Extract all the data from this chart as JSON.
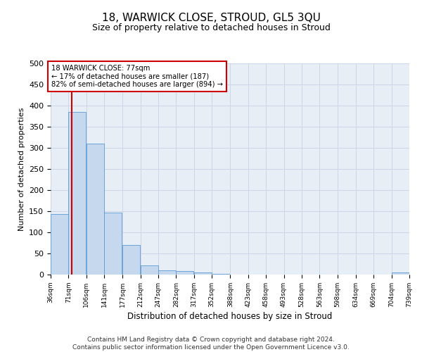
{
  "title": "18, WARWICK CLOSE, STROUD, GL5 3QU",
  "subtitle": "Size of property relative to detached houses in Stroud",
  "xlabel": "Distribution of detached houses by size in Stroud",
  "ylabel": "Number of detached properties",
  "bin_edges": [
    36,
    71,
    106,
    141,
    177,
    212,
    247,
    282,
    317,
    352,
    388,
    423,
    458,
    493,
    528,
    563,
    598,
    634,
    669,
    704,
    739
  ],
  "bar_heights": [
    143,
    385,
    310,
    146,
    70,
    22,
    10,
    8,
    5,
    2,
    0,
    0,
    0,
    0,
    0,
    0,
    0,
    0,
    0,
    5
  ],
  "bar_color": "#c5d8ed",
  "bar_edge_color": "#5b9bd5",
  "vline_x": 77,
  "vline_color": "#cc0000",
  "annotation_line1": "18 WARWICK CLOSE: 77sqm",
  "annotation_line2": "← 17% of detached houses are smaller (187)",
  "annotation_line3": "82% of semi-detached houses are larger (894) →",
  "annotation_box_color": "#ffffff",
  "annotation_box_edge_color": "#cc0000",
  "grid_color": "#cdd6e8",
  "background_color": "#e8eef5",
  "ylim": [
    0,
    500
  ],
  "yticks": [
    0,
    50,
    100,
    150,
    200,
    250,
    300,
    350,
    400,
    450,
    500
  ],
  "tick_labels": [
    "36sqm",
    "71sqm",
    "106sqm",
    "141sqm",
    "177sqm",
    "212sqm",
    "247sqm",
    "282sqm",
    "317sqm",
    "352sqm",
    "388sqm",
    "423sqm",
    "458sqm",
    "493sqm",
    "528sqm",
    "563sqm",
    "598sqm",
    "634sqm",
    "669sqm",
    "704sqm",
    "739sqm"
  ],
  "footer_line1": "Contains HM Land Registry data © Crown copyright and database right 2024.",
  "footer_line2": "Contains public sector information licensed under the Open Government Licence v3.0."
}
